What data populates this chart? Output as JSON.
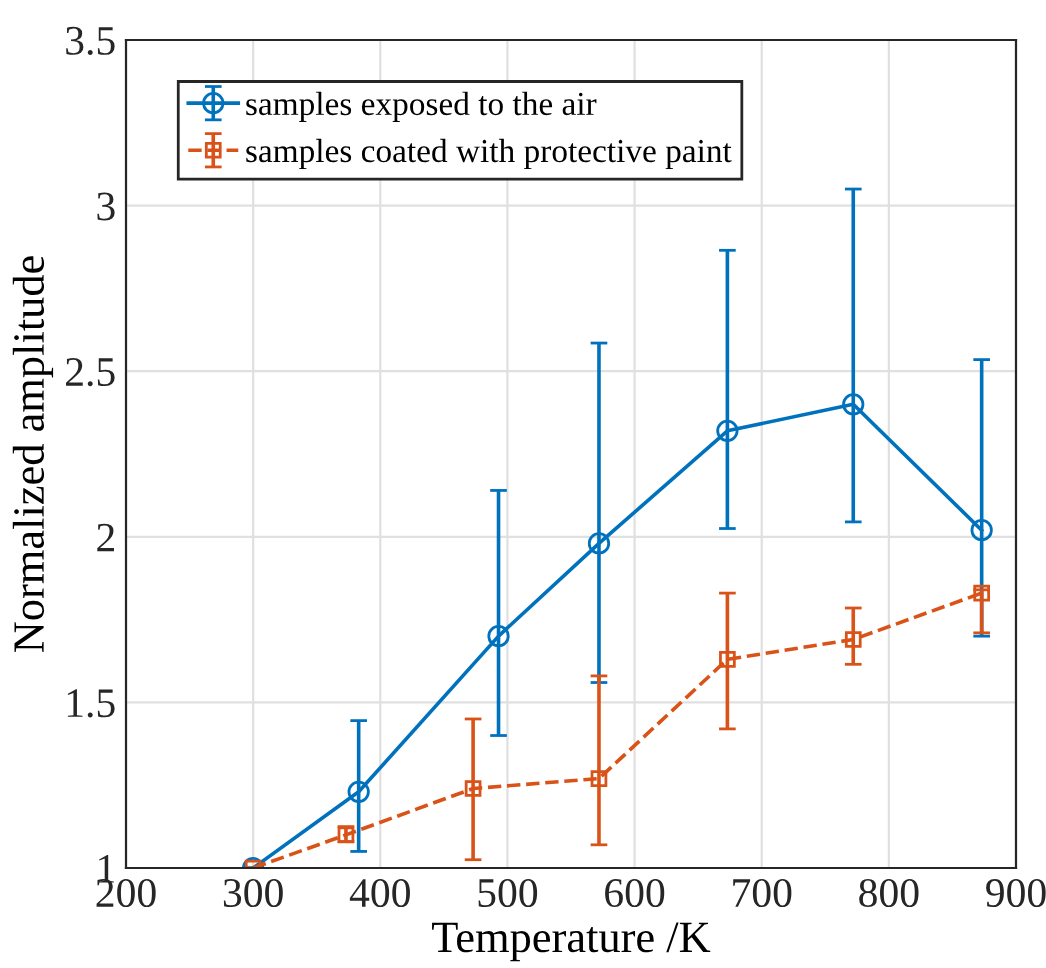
{
  "chart_data": {
    "type": "line",
    "xlabel": "Temperature /K",
    "ylabel": "Normalized amplitude",
    "xlim": [
      200,
      900
    ],
    "xticks": [
      200,
      300,
      400,
      500,
      600,
      700,
      800,
      900
    ],
    "ylim": [
      1,
      3.5
    ],
    "yticks": [
      1,
      1.5,
      2,
      2.5,
      3,
      3.5
    ],
    "grid": true,
    "legend": "top left",
    "series": [
      {
        "name": "samples exposed to the air",
        "color": "#0072bd",
        "marker": "circle",
        "line_style": "solid",
        "x": [
          300,
          383,
          493,
          572,
          673,
          772,
          873
        ],
        "values": [
          1,
          1.23,
          1.7,
          1.98,
          2.32,
          2.4,
          2.02
        ],
        "errors": [
          null,
          [
            1.05,
            1.445
          ],
          [
            1.4,
            2.14
          ],
          [
            1.56,
            2.585
          ],
          [
            2.025,
            2.865
          ],
          [
            2.045,
            3.05
          ],
          [
            1.7,
            2.535
          ]
        ]
      },
      {
        "name": "samples coated with protective paint",
        "color": "#d95319",
        "marker": "square",
        "line_style": "dashed",
        "x": [
          300,
          373,
          473,
          572,
          673,
          772,
          873
        ],
        "values": [
          1,
          1.1,
          1.24,
          1.27,
          1.63,
          1.69,
          1.83
        ],
        "errors": [
          null,
          [
            1.08,
            1.125
          ],
          [
            1.025,
            1.45
          ],
          [
            1.07,
            1.58
          ],
          [
            1.42,
            1.83
          ],
          [
            1.615,
            1.785
          ],
          [
            1.71,
            1.84
          ]
        ]
      }
    ]
  }
}
